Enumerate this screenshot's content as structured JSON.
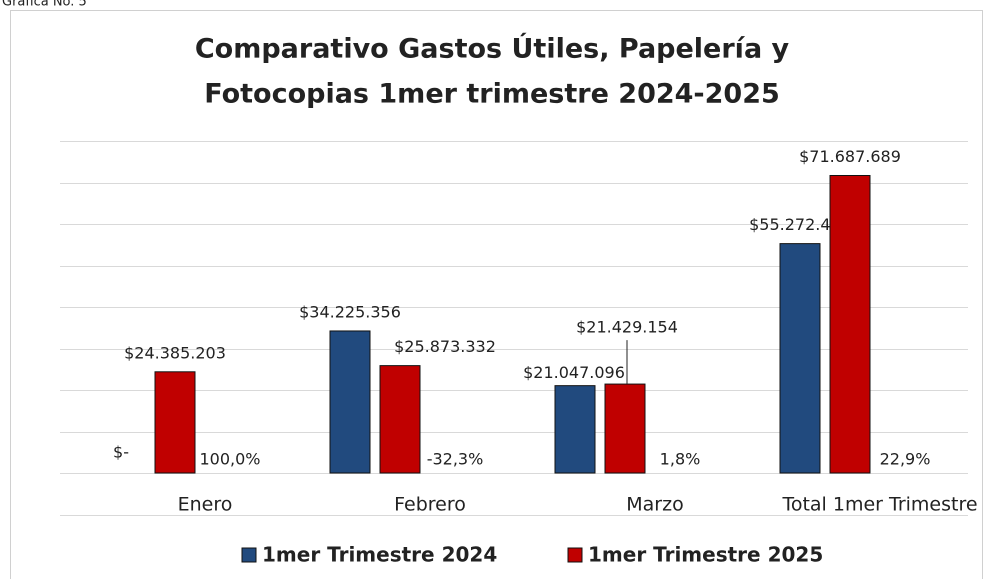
{
  "caption": "Gráfica No. 5",
  "chart_data": {
    "type": "bar",
    "title": [
      "Comparativo Gastos Útiles, Papelería y",
      "Fotocopias  1mer  trimestre 2024-2025"
    ],
    "categories": [
      "Enero",
      "Febrero",
      "Marzo",
      "Total 1mer Trimestre"
    ],
    "series": [
      {
        "name": "1mer Trimestre 2024",
        "color": "#214a7e",
        "values": [
          0,
          34225356,
          21047096,
          55272452
        ],
        "value_labels": [
          "$-",
          "$34.225.356",
          "$21.047.096",
          "$55.272.452"
        ]
      },
      {
        "name": "1mer Trimestre 2025",
        "color": "#c00000",
        "values": [
          24385203,
          25873332,
          21429154,
          71687689
        ],
        "value_labels": [
          "$24.385.203",
          "$25.873.332",
          "$21.429.154",
          "$71.687.689"
        ]
      }
    ],
    "annotations": [
      "100,0%",
      "-32,3%",
      "1,8%",
      "22,9%"
    ],
    "ylim": [
      0,
      80000000
    ],
    "yticks": [
      0,
      10000000,
      20000000,
      30000000,
      40000000,
      50000000,
      60000000,
      70000000,
      80000000
    ],
    "grid": true,
    "legend": "bottom"
  }
}
